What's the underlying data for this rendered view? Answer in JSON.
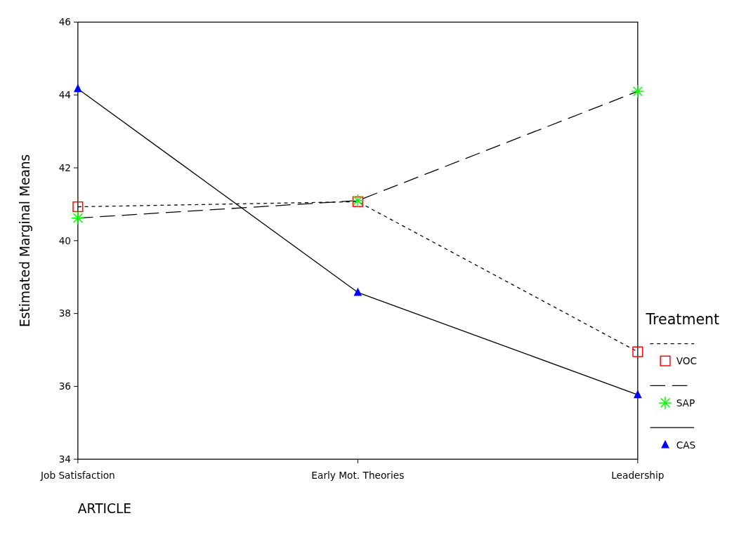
{
  "chart_data": {
    "type": "line",
    "xlabel": "ARTICLE",
    "ylabel": "Estimated Marginal Means",
    "legend_title": "Treatment",
    "legend": "right",
    "categories": [
      "Job Satisfaction",
      "Early Mot. Theories",
      "Leadership"
    ],
    "ylim": [
      34,
      46
    ],
    "yticks": [
      34,
      36,
      38,
      40,
      42,
      44,
      46
    ],
    "series": [
      {
        "name": "VOC",
        "color": "#ff0000",
        "values": [
          40.93,
          41.07,
          36.95
        ],
        "marker": "square",
        "line_style": "dotted"
      },
      {
        "name": "SAP",
        "color": "#00ff00",
        "values": [
          40.62,
          41.1,
          44.1
        ],
        "marker": "cross",
        "line_style": "dashed"
      },
      {
        "name": "CAS",
        "color": "#0000ff",
        "values": [
          44.17,
          38.58,
          35.77
        ],
        "marker": "triangle",
        "line_style": "solid"
      }
    ]
  }
}
